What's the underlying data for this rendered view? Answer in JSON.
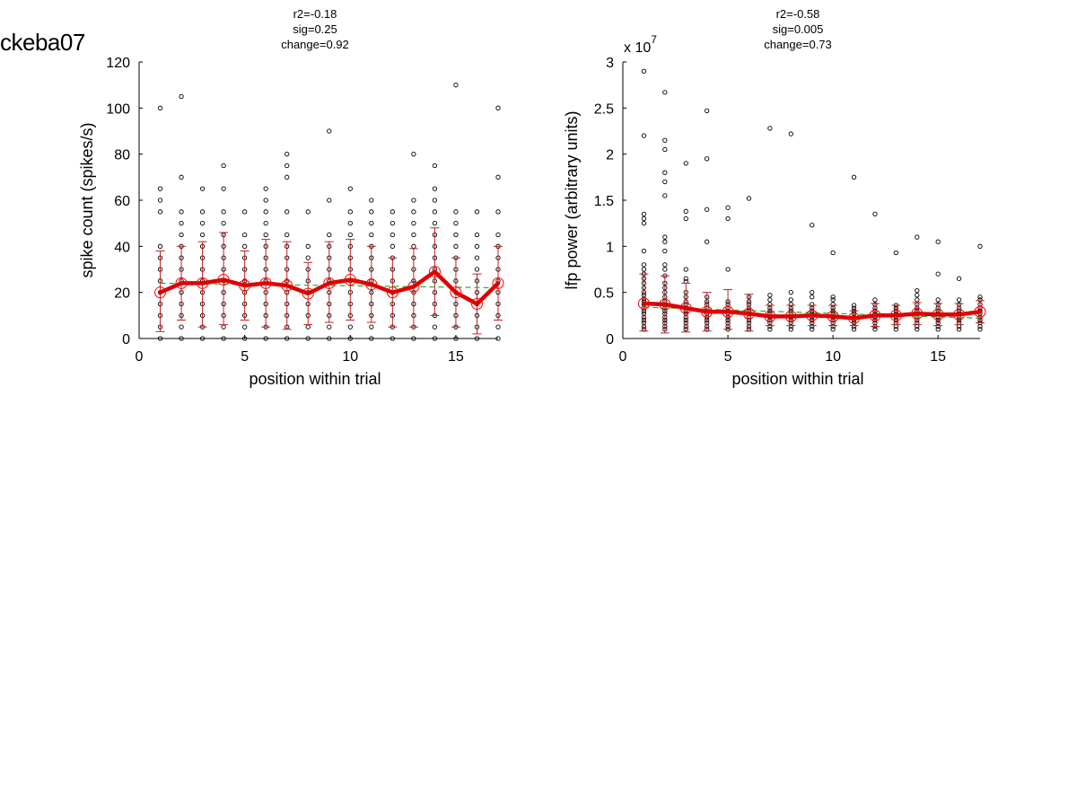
{
  "figure_label": "ckeba07",
  "colors": {
    "mean_line": "#dd0000",
    "errorbar": "#c02020",
    "mean_marker": "#ff0000",
    "fit_line": "#33aa33",
    "points": "#000000"
  },
  "chart_data": [
    {
      "type": "scatter",
      "title_lines": [
        "r2=-0.18",
        "sig=0.25",
        "change=0.92"
      ],
      "xlabel": "position within trial",
      "ylabel": "spike count (spikes/s)",
      "xlim": [
        0,
        17
      ],
      "ylim": [
        0,
        120
      ],
      "xticks": [
        0,
        5,
        10,
        15
      ],
      "yticks": [
        0,
        20,
        40,
        60,
        80,
        100,
        120
      ],
      "ytick_labels": [
        "0",
        "20",
        "40",
        "60",
        "80",
        "100",
        "120"
      ],
      "multiplier_label": "",
      "grid": false,
      "x": [
        1,
        2,
        3,
        4,
        5,
        6,
        7,
        8,
        9,
        10,
        11,
        12,
        13,
        14,
        15,
        16,
        17
      ],
      "points": [
        [
          0,
          5,
          10,
          15,
          20,
          25,
          30,
          35,
          40,
          55,
          60,
          65,
          100
        ],
        [
          0,
          5,
          10,
          15,
          20,
          25,
          30,
          35,
          40,
          45,
          50,
          55,
          70,
          105
        ],
        [
          0,
          5,
          10,
          15,
          20,
          25,
          30,
          35,
          40,
          45,
          50,
          55,
          65
        ],
        [
          0,
          5,
          10,
          15,
          20,
          25,
          30,
          35,
          40,
          45,
          50,
          55,
          65,
          75
        ],
        [
          0,
          5,
          10,
          15,
          20,
          25,
          30,
          35,
          40,
          45,
          55
        ],
        [
          0,
          5,
          10,
          15,
          20,
          25,
          30,
          35,
          40,
          45,
          50,
          55,
          60,
          65
        ],
        [
          0,
          5,
          10,
          15,
          20,
          25,
          30,
          35,
          40,
          45,
          55,
          70,
          75,
          80
        ],
        [
          0,
          5,
          10,
          15,
          20,
          25,
          30,
          35,
          40,
          55
        ],
        [
          0,
          5,
          10,
          15,
          20,
          25,
          30,
          35,
          40,
          45,
          60,
          90
        ],
        [
          0,
          5,
          10,
          15,
          20,
          25,
          30,
          35,
          40,
          45,
          50,
          55,
          65
        ],
        [
          0,
          5,
          10,
          15,
          20,
          25,
          30,
          35,
          40,
          45,
          50,
          55,
          60
        ],
        [
          0,
          5,
          10,
          15,
          20,
          25,
          30,
          35,
          40,
          45,
          50,
          55
        ],
        [
          0,
          5,
          10,
          15,
          20,
          25,
          30,
          35,
          40,
          45,
          50,
          55,
          60,
          80
        ],
        [
          0,
          5,
          10,
          15,
          20,
          25,
          30,
          35,
          40,
          45,
          50,
          55,
          60,
          65,
          75
        ],
        [
          0,
          5,
          10,
          15,
          20,
          25,
          30,
          35,
          40,
          45,
          50,
          55,
          110
        ],
        [
          0,
          5,
          10,
          15,
          20,
          25,
          30,
          35,
          40,
          45,
          55
        ],
        [
          0,
          5,
          10,
          15,
          20,
          25,
          30,
          35,
          40,
          45,
          55,
          70,
          100
        ]
      ],
      "mean": [
        20,
        24,
        24,
        25.5,
        23,
        24,
        23,
        19.5,
        24,
        25.5,
        23.5,
        20,
        22.5,
        29,
        20,
        15,
        24
      ],
      "err_low": [
        3,
        8,
        5,
        6,
        8,
        5,
        4,
        6,
        7,
        8,
        7,
        5,
        5,
        10,
        5,
        2,
        8
      ],
      "err_high": [
        38,
        40,
        42,
        46,
        38,
        43,
        42,
        33,
        42,
        43,
        40,
        35,
        39,
        48,
        35,
        28,
        40
      ],
      "fit": [
        [
          1,
          24
        ],
        [
          17,
          22
        ]
      ]
    },
    {
      "type": "scatter",
      "title_lines": [
        "r2=-0.58",
        "sig=0.005",
        "change=0.73"
      ],
      "xlabel": "position within trial",
      "ylabel": "lfp power (arbitrary units)",
      "xlim": [
        0,
        17
      ],
      "ylim": [
        0,
        3
      ],
      "xticks": [
        0,
        5,
        10,
        15
      ],
      "yticks": [
        0,
        0.5,
        1,
        1.5,
        2,
        2.5,
        3
      ],
      "ytick_labels": [
        "0",
        "0.5",
        "1",
        "1.5",
        "2",
        "2.5",
        "3"
      ],
      "multiplier_label": "x 10",
      "multiplier_exponent": "7",
      "grid": false,
      "x": [
        1,
        2,
        3,
        4,
        5,
        6,
        7,
        8,
        9,
        10,
        11,
        12,
        13,
        14,
        15,
        16,
        17
      ],
      "points": [
        [
          0.1,
          0.13,
          0.17,
          0.2,
          0.23,
          0.27,
          0.3,
          0.33,
          0.37,
          0.4,
          0.43,
          0.47,
          0.5,
          0.55,
          0.6,
          0.65,
          0.7,
          0.75,
          0.8,
          0.95,
          1.25,
          1.3,
          1.35,
          2.2,
          2.9
        ],
        [
          0.1,
          0.13,
          0.17,
          0.2,
          0.23,
          0.27,
          0.3,
          0.33,
          0.37,
          0.4,
          0.45,
          0.5,
          0.55,
          0.6,
          0.68,
          0.75,
          0.8,
          0.95,
          1.05,
          1.1,
          1.55,
          1.7,
          1.8,
          2.05,
          2.15,
          2.67
        ],
        [
          0.1,
          0.13,
          0.17,
          0.2,
          0.23,
          0.27,
          0.3,
          0.33,
          0.37,
          0.4,
          0.45,
          0.5,
          0.62,
          0.65,
          0.75,
          1.3,
          1.38,
          1.9
        ],
        [
          0.1,
          0.13,
          0.17,
          0.2,
          0.23,
          0.27,
          0.3,
          0.33,
          0.37,
          0.4,
          0.45,
          1.05,
          1.4,
          1.95,
          2.47
        ],
        [
          0.1,
          0.13,
          0.17,
          0.2,
          0.23,
          0.27,
          0.3,
          0.33,
          0.37,
          0.4,
          0.75,
          1.3,
          1.42
        ],
        [
          0.1,
          0.13,
          0.17,
          0.2,
          0.23,
          0.27,
          0.3,
          0.33,
          0.37,
          0.4,
          0.45,
          1.52
        ],
        [
          0.1,
          0.13,
          0.17,
          0.2,
          0.23,
          0.27,
          0.3,
          0.33,
          0.37,
          0.42,
          0.47,
          2.28
        ],
        [
          0.1,
          0.13,
          0.17,
          0.2,
          0.23,
          0.27,
          0.3,
          0.33,
          0.37,
          0.42,
          0.5,
          2.22
        ],
        [
          0.1,
          0.13,
          0.17,
          0.2,
          0.23,
          0.27,
          0.3,
          0.33,
          0.37,
          0.45,
          0.5,
          1.23
        ],
        [
          0.1,
          0.13,
          0.17,
          0.2,
          0.23,
          0.27,
          0.3,
          0.33,
          0.37,
          0.42,
          0.45,
          0.93
        ],
        [
          0.1,
          0.13,
          0.17,
          0.2,
          0.23,
          0.27,
          0.3,
          0.33,
          0.36,
          1.75
        ],
        [
          0.1,
          0.13,
          0.17,
          0.2,
          0.23,
          0.27,
          0.3,
          0.33,
          0.37,
          0.42,
          1.35
        ],
        [
          0.1,
          0.13,
          0.17,
          0.2,
          0.23,
          0.27,
          0.3,
          0.33,
          0.36,
          0.93
        ],
        [
          0.1,
          0.13,
          0.17,
          0.2,
          0.23,
          0.27,
          0.3,
          0.33,
          0.37,
          0.42,
          0.47,
          0.52,
          1.1
        ],
        [
          0.1,
          0.13,
          0.17,
          0.2,
          0.23,
          0.27,
          0.3,
          0.33,
          0.37,
          0.42,
          0.7,
          1.05
        ],
        [
          0.1,
          0.13,
          0.17,
          0.2,
          0.23,
          0.27,
          0.3,
          0.33,
          0.37,
          0.42,
          0.65
        ],
        [
          0.1,
          0.13,
          0.17,
          0.2,
          0.23,
          0.27,
          0.3,
          0.33,
          0.37,
          0.42,
          0.45,
          1.0
        ]
      ],
      "mean": [
        0.38,
        0.37,
        0.33,
        0.29,
        0.29,
        0.27,
        0.24,
        0.24,
        0.25,
        0.24,
        0.22,
        0.25,
        0.25,
        0.27,
        0.26,
        0.26,
        0.29
      ],
      "err_low": [
        0.08,
        0.06,
        0.07,
        0.08,
        0.1,
        0.08,
        0.14,
        0.14,
        0.14,
        0.14,
        0.14,
        0.13,
        0.15,
        0.15,
        0.14,
        0.15,
        0.17
      ],
      "err_high": [
        0.7,
        0.68,
        0.6,
        0.5,
        0.53,
        0.48,
        0.36,
        0.36,
        0.36,
        0.36,
        0.3,
        0.38,
        0.36,
        0.39,
        0.38,
        0.38,
        0.41
      ],
      "fit": [
        [
          1,
          0.34
        ],
        [
          17,
          0.22
        ]
      ]
    }
  ]
}
